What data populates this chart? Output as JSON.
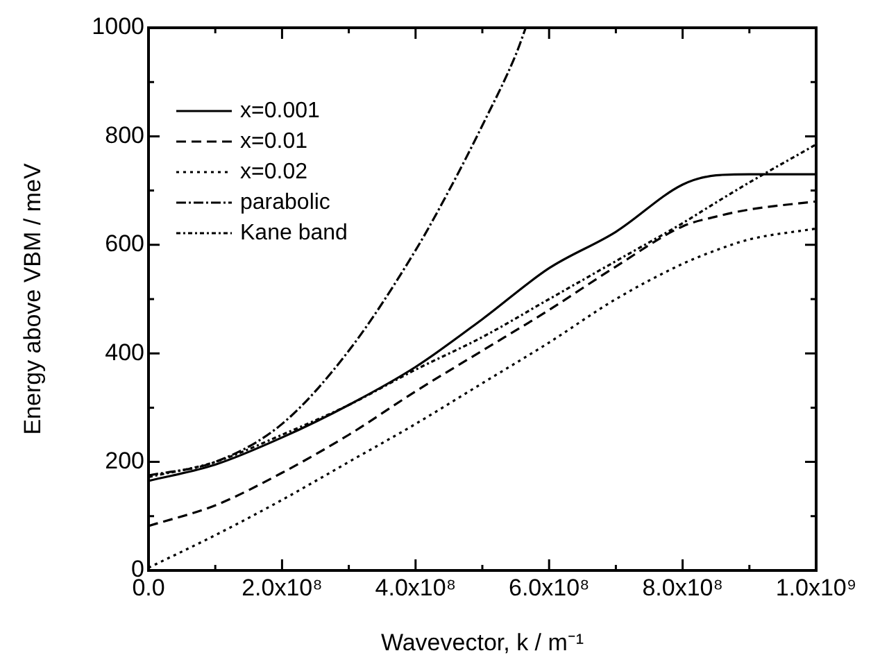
{
  "chart_data": {
    "type": "line",
    "xlabel": "Wavevector, k / m⁻¹",
    "ylabel": "Energy above VBM / meV",
    "xlim": [
      0,
      1000000000
    ],
    "ylim": [
      0,
      1000
    ],
    "xticks": [
      {
        "value": 0,
        "label": "0.0"
      },
      {
        "value": 100000000,
        "label": null
      },
      {
        "value": 200000000,
        "label": "2.0x10⁸"
      },
      {
        "value": 300000000,
        "label": null
      },
      {
        "value": 400000000,
        "label": "4.0x10⁸"
      },
      {
        "value": 500000000,
        "label": null
      },
      {
        "value": 600000000,
        "label": "6.0x10⁸"
      },
      {
        "value": 700000000,
        "label": null
      },
      {
        "value": 800000000,
        "label": "8.0x10⁸"
      },
      {
        "value": 900000000,
        "label": null
      },
      {
        "value": 1000000000,
        "label": "1.0x10⁹"
      }
    ],
    "yticks": [
      0,
      {
        "value": 100,
        "label": null
      },
      200,
      {
        "value": 300,
        "label": null
      },
      400,
      {
        "value": 500,
        "label": null
      },
      600,
      {
        "value": 700,
        "label": null
      },
      800,
      {
        "value": 900,
        "label": null
      },
      1000
    ],
    "grid": false,
    "legend": "top left",
    "marker": "none",
    "x": [
      0,
      100000000,
      200000000,
      300000000,
      400000000,
      500000000,
      600000000,
      700000000,
      800000000,
      850000000,
      900000000,
      1000000000
    ],
    "series": [
      {
        "name": "x=0.001",
        "color": "#000000",
        "line_style": "solid",
        "values": [
          165,
          195,
          245,
          305,
          375,
          463,
          557,
          624,
          711,
          728,
          730,
          730
        ]
      },
      {
        "name": "x=0.01",
        "color": "#000000",
        "line_style": "dashed",
        "values": [
          82,
          120,
          180,
          250,
          330,
          405,
          480,
          560,
          634,
          652,
          665,
          680
        ]
      },
      {
        "name": "x=0.02",
        "color": "#000000",
        "line_style": "dotted",
        "values": [
          5,
          65,
          130,
          200,
          270,
          345,
          420,
          500,
          565,
          590,
          610,
          630
        ]
      },
      {
        "name": "parabolic",
        "color": "#000000",
        "line_style": "dashdot",
        "x": [
          0,
          100000000,
          200000000,
          300000000,
          400000000,
          450000000,
          500000000,
          550000000,
          565000000
        ],
        "values": [
          175,
          200,
          270,
          405,
          590,
          700,
          820,
          950,
          1000
        ]
      },
      {
        "name": "Kane band",
        "color": "#000000",
        "line_style": "dashdotdot",
        "values": [
          172,
          200,
          250,
          305,
          370,
          430,
          500,
          570,
          640,
          678,
          715,
          785
        ]
      }
    ]
  }
}
